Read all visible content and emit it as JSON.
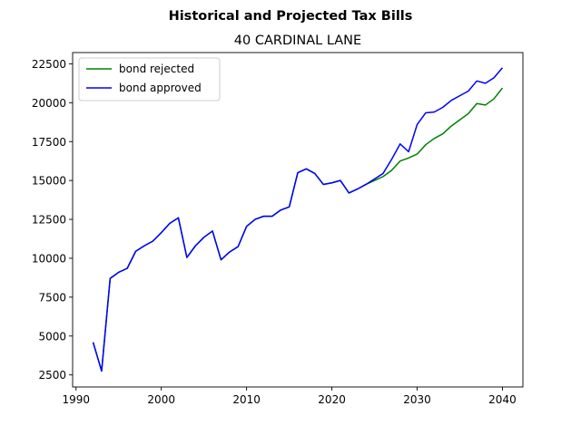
{
  "chart_data": {
    "type": "line",
    "suptitle": "Historical and Projected Tax Bills",
    "title": "40 CARDINAL LANE",
    "xlabel": "",
    "ylabel": "",
    "xlim": [
      1989.6,
      2042.4
    ],
    "ylim": [
      1725,
      23225
    ],
    "x_ticks": [
      1990,
      2000,
      2010,
      2020,
      2030,
      2040
    ],
    "y_ticks": [
      2500,
      5000,
      7500,
      10000,
      12500,
      15000,
      17500,
      20000,
      22500
    ],
    "grid": false,
    "legend_position": "top-left",
    "series": [
      {
        "name": "bond rejected",
        "color": "#008000",
        "x": [
          1992,
          1993,
          1994,
          1995,
          1996,
          1997,
          1998,
          1999,
          2000,
          2001,
          2002,
          2003,
          2004,
          2005,
          2006,
          2007,
          2008,
          2009,
          2010,
          2011,
          2012,
          2013,
          2014,
          2015,
          2016,
          2017,
          2018,
          2019,
          2020,
          2021,
          2022,
          2023,
          2024,
          2025,
          2026,
          2027,
          2028,
          2029,
          2030,
          2031,
          2032,
          2033,
          2034,
          2035,
          2036,
          2037,
          2038,
          2039,
          2040
        ],
        "values": [
          4600,
          2750,
          8700,
          9100,
          9350,
          10450,
          10800,
          11100,
          11650,
          12250,
          12600,
          10050,
          10800,
          11350,
          11750,
          9900,
          10400,
          10750,
          12050,
          12500,
          12700,
          12700,
          13100,
          13300,
          15500,
          15750,
          15450,
          14750,
          14850,
          15000,
          14200,
          14450,
          14750,
          15000,
          15250,
          15650,
          16250,
          16450,
          16700,
          17300,
          17700,
          18000,
          18500,
          18900,
          19300,
          19950,
          19850,
          20250,
          20950
        ]
      },
      {
        "name": "bond approved",
        "color": "#0000ff",
        "x": [
          1992,
          1993,
          1994,
          1995,
          1996,
          1997,
          1998,
          1999,
          2000,
          2001,
          2002,
          2003,
          2004,
          2005,
          2006,
          2007,
          2008,
          2009,
          2010,
          2011,
          2012,
          2013,
          2014,
          2015,
          2016,
          2017,
          2018,
          2019,
          2020,
          2021,
          2022,
          2023,
          2024,
          2025,
          2026,
          2027,
          2028,
          2029,
          2030,
          2031,
          2032,
          2033,
          2034,
          2035,
          2036,
          2037,
          2038,
          2039,
          2040
        ],
        "values": [
          4600,
          2750,
          8700,
          9100,
          9350,
          10450,
          10800,
          11100,
          11650,
          12250,
          12600,
          10050,
          10800,
          11350,
          11750,
          9900,
          10400,
          10750,
          12050,
          12500,
          12700,
          12700,
          13100,
          13300,
          15500,
          15750,
          15450,
          14750,
          14850,
          15000,
          14200,
          14450,
          14750,
          15100,
          15450,
          16350,
          17350,
          16850,
          18600,
          19350,
          19400,
          19700,
          20150,
          20450,
          20750,
          21400,
          21250,
          21600,
          22250
        ]
      }
    ]
  }
}
